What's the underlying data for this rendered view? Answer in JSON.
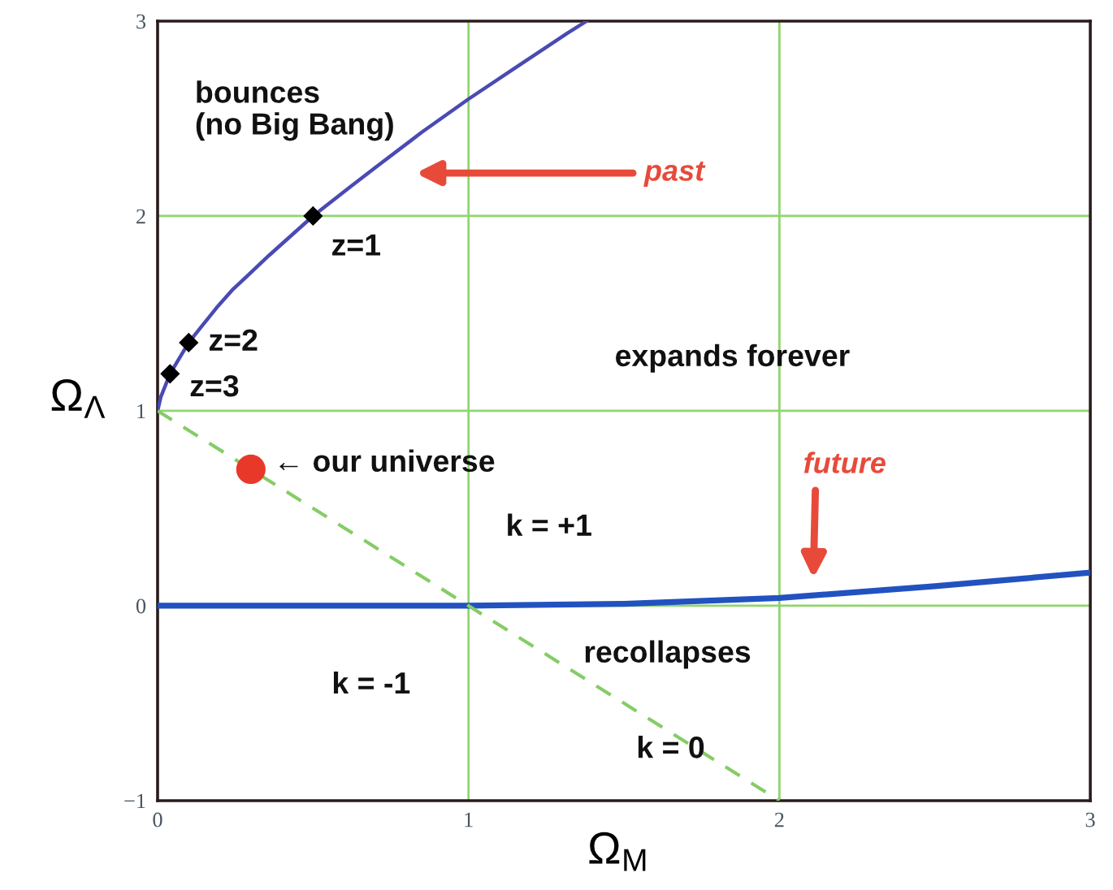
{
  "chart_data": {
    "type": "line",
    "xlabel": "Ω$_{M}$",
    "ylabel": "Ω$_{Λ}$",
    "xlim": [
      0,
      3
    ],
    "ylim": [
      -1,
      3
    ],
    "xticks": [
      0,
      1,
      2,
      3
    ],
    "yticks": [
      {
        "value": -1,
        "label": "−1"
      },
      0,
      1,
      2,
      3
    ],
    "grid": true,
    "series": [
      {
        "color": "#4a4ab4",
        "line_style": "solid",
        "marker": "none",
        "x": [
          0,
          0.01,
          0.04,
          0.1,
          0.15,
          0.19,
          0.24,
          0.28,
          0.36,
          0.43,
          0.5,
          0.62,
          0.71,
          0.85,
          1.0,
          1.15,
          1.32,
          1.38
        ],
        "values": [
          1.0,
          1.07,
          1.19,
          1.35,
          1.45,
          1.53,
          1.62,
          1.68,
          1.8,
          1.9,
          2.0,
          2.15,
          2.26,
          2.43,
          2.6,
          2.76,
          2.94,
          3.0
        ]
      },
      {
        "color": "#2252c0",
        "line_style": "solid",
        "marker": "none",
        "x": [
          0,
          1,
          1.5,
          2,
          2.5,
          3
        ],
        "values": [
          0,
          0,
          0.01,
          0.04,
          0.1,
          0.17
        ]
      },
      {
        "color": "#86cc66",
        "line_style": "dashed",
        "marker": "none",
        "x": [
          0,
          2
        ],
        "values": [
          1,
          -1
        ]
      },
      {
        "type": "scatter",
        "color": "#000000",
        "marker": "diamond",
        "x": [
          0.04,
          0.1,
          0.5
        ],
        "values": [
          1.19,
          1.35,
          2.0
        ]
      },
      {
        "type": "scatter",
        "color": "#e8382a",
        "marker": "circle",
        "x": [
          0.3
        ],
        "values": [
          0.7
        ]
      }
    ],
    "annotations": [
      "bounces\n(no Big Bang)",
      "past",
      "expands forever",
      {
        "text": "← our universe",
        "x": 0.3,
        "y": 0.7
      },
      "future",
      "k = +1",
      "recollapses",
      "k = -1",
      "k = 0",
      {
        "text": "z=1",
        "x": 0.5,
        "y": 2.0
      },
      {
        "text": "z=2",
        "x": 0.1,
        "y": 1.35
      },
      {
        "text": "z=3",
        "x": 0.04,
        "y": 1.19
      }
    ]
  }
}
